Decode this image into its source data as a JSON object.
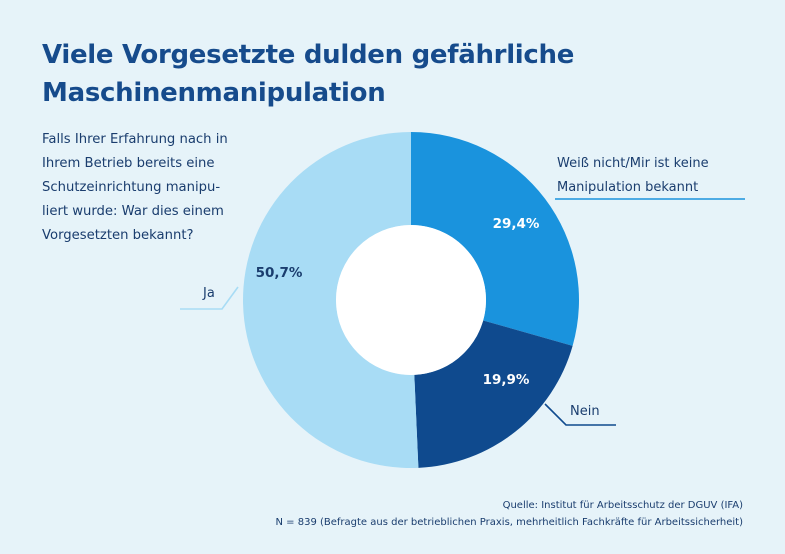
{
  "page": {
    "title_lines": [
      "Viele Vorgesetzte dulden gefährliche",
      "Maschinenmanipulation"
    ],
    "question_lines": [
      "Falls Ihrer Erfahrung nach in",
      "Ihrem Betrieb bereits eine",
      "Schutzeinrichtung manipu-",
      "liert wurde: War dies einem",
      "Vorgesetzten bekannt?"
    ],
    "source_line": "Quelle: Institut für Arbeitsschutz der DGUV (IFA)",
    "sample_line": "N = 839 (Befragte aus der betrieblichen Praxis, mehrheitlich Fachkräfte für Arbeitssicherheit)"
  },
  "colors": {
    "background": "#e6f3f9",
    "title": "#164b8c",
    "text": "#1a3d6e"
  },
  "chart_data": {
    "type": "pie",
    "style": "donut",
    "start": "top, clockwise",
    "slices": [
      {
        "label_lines": [
          "Weiß nicht/Mir ist keine",
          "Manipulation bekannt"
        ],
        "value": 29.4,
        "value_text": "29,4%",
        "color": "#1a93dd",
        "label_color": "#1a3d6e",
        "value_text_color": "#ffffff"
      },
      {
        "label_lines": [
          "Nein"
        ],
        "value": 19.9,
        "value_text": "19,9%",
        "color": "#0f4a8e",
        "label_color": "#1a3d6e",
        "value_text_color": "#ffffff"
      },
      {
        "label_lines": [
          "Ja"
        ],
        "value": 50.7,
        "value_text": "50,7%",
        "color": "#a8dcf5",
        "label_color": "#1a3d6e",
        "value_text_color": "#1a3d6e"
      }
    ]
  }
}
